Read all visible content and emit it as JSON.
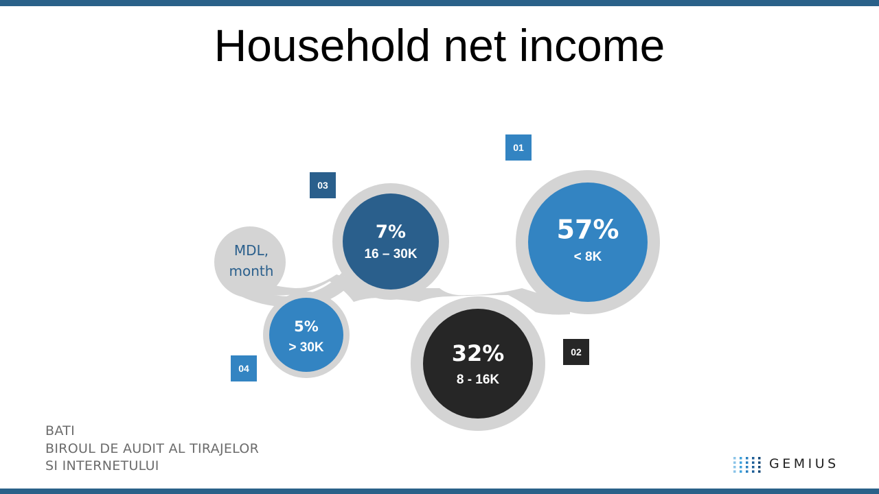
{
  "title": "Household net income",
  "unit_label_line1": "MDL,",
  "unit_label_line2": "month",
  "source": {
    "line1": "BATI",
    "line2": "BIROUL DE AUDIT AL TIRAJELOR",
    "line3": "SI INTERNETULUI"
  },
  "logo": {
    "text": "GEMIUS"
  },
  "colors": {
    "accent_blue": "#3384c2",
    "dark_blue": "#2a5f8c",
    "dark": "#262626",
    "track_gray": "#d4d4d4",
    "unit_text": "#2a5f8c",
    "bars": "#2a6189"
  },
  "chart_data": {
    "type": "bubble",
    "title": "Household net income",
    "unit": "MDL, month",
    "items": [
      {
        "rank": "01",
        "value": 57,
        "label": "57%",
        "category": "< 8K",
        "color": "#3384c2"
      },
      {
        "rank": "02",
        "value": 32,
        "label": "32%",
        "category": "8 - 16K",
        "color": "#262626"
      },
      {
        "rank": "03",
        "value": 7,
        "label": "7%",
        "category": "16 – 30K",
        "color": "#2a5f8c"
      },
      {
        "rank": "04",
        "value": 5,
        "label": "5%",
        "category": "> 30K",
        "color": "#3384c2"
      }
    ]
  }
}
